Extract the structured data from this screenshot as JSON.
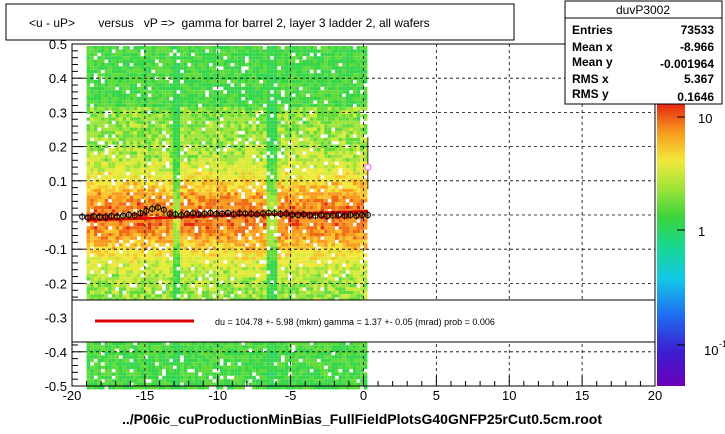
{
  "title": "<u - uP>       versus   vP =>  gamma for barrel 2, layer 3 ladder 2, all wafers",
  "stats": {
    "name": "duvP3002",
    "rows": [
      {
        "label": "Entries",
        "value": "73533"
      },
      {
        "label": "Mean x",
        "value": "-8.966"
      },
      {
        "label": "Mean y",
        "value": "-0.001964"
      },
      {
        "label": "RMS x",
        "value": "5.367"
      },
      {
        "label": "RMS y",
        "value": "0.1646"
      }
    ]
  },
  "fit_text": "du =  104.78 +-  5.98 (mkm) gamma =    1.37 +-  0.05 (mrad) prob = 0.006",
  "footer": "../P06ic_cuProductionMinBias_FullFieldPlotsG40GNFP25rCut0.5cm.root",
  "colors": {
    "fit_line": "#dd0000",
    "marker": "#000000",
    "grid": "#000000",
    "profile_outlier": "#ff66ff"
  },
  "chart_data": {
    "type": "heatmap",
    "xlim": [
      -20,
      20
    ],
    "ylim": [
      -0.5,
      0.5
    ],
    "x_ticks": [
      "-20",
      "-15",
      "-10",
      "-5",
      "0",
      "5",
      "10",
      "15",
      "20"
    ],
    "y_ticks": [
      "-0.5",
      "-0.4",
      "-0.3",
      "-0.2",
      "-0.1",
      "0",
      "0.1",
      "0.2",
      "0.3",
      "0.4",
      "0.5"
    ],
    "grid": true,
    "colorbar": {
      "scale": "log",
      "tick_labels": [
        "10",
        "1",
        "10"
      ],
      "min_label_superscript": "-1"
    },
    "heatmap_x_range": [
      -19.0,
      0.2
    ],
    "gap_columns": [
      -13.0,
      -6.4
    ],
    "profile": {
      "x": [
        -19.3,
        -18.9,
        -18.5,
        -18.1,
        -17.7,
        -17.3,
        -16.9,
        -16.5,
        -16.1,
        -15.7,
        -15.3,
        -14.9,
        -14.5,
        -14.1,
        -13.7,
        -13.3,
        -12.9,
        -12.5,
        -12.1,
        -11.7,
        -11.3,
        -10.9,
        -10.5,
        -10.1,
        -9.7,
        -9.3,
        -8.9,
        -8.5,
        -8.1,
        -7.7,
        -7.3,
        -6.9,
        -6.5,
        -6.1,
        -5.7,
        -5.3,
        -4.9,
        -4.5,
        -4.1,
        -3.7,
        -3.3,
        -2.9,
        -2.5,
        -2.1,
        -1.7,
        -1.3,
        -0.9,
        -0.5,
        -0.1,
        0.3
      ],
      "y": [
        -0.005,
        -0.008,
        -0.004,
        -0.006,
        -0.006,
        -0.003,
        -0.005,
        -0.002,
        0.0,
        -0.001,
        0.005,
        0.012,
        0.018,
        0.022,
        0.015,
        0.003,
        0.002,
        -0.001,
        0.003,
        0.005,
        0.002,
        0.004,
        0.006,
        0.003,
        0.004,
        0.006,
        0.002,
        0.005,
        0.004,
        0.003,
        0.002,
        0.004,
        0.006,
        0.005,
        0.003,
        0.004,
        0.001,
        0.0,
        0.002,
        -0.001,
        -0.002,
        0.0,
        -0.003,
        -0.001,
        0.0,
        -0.002,
        0.0,
        -0.002,
        0.0,
        0.0
      ],
      "outlier": {
        "x": 0.3,
        "y": 0.14
      }
    },
    "fit_line": {
      "slope_per_cm": 0.00137,
      "intercept": 0.0105,
      "x_range": [
        -19.0,
        0.3
      ]
    }
  }
}
